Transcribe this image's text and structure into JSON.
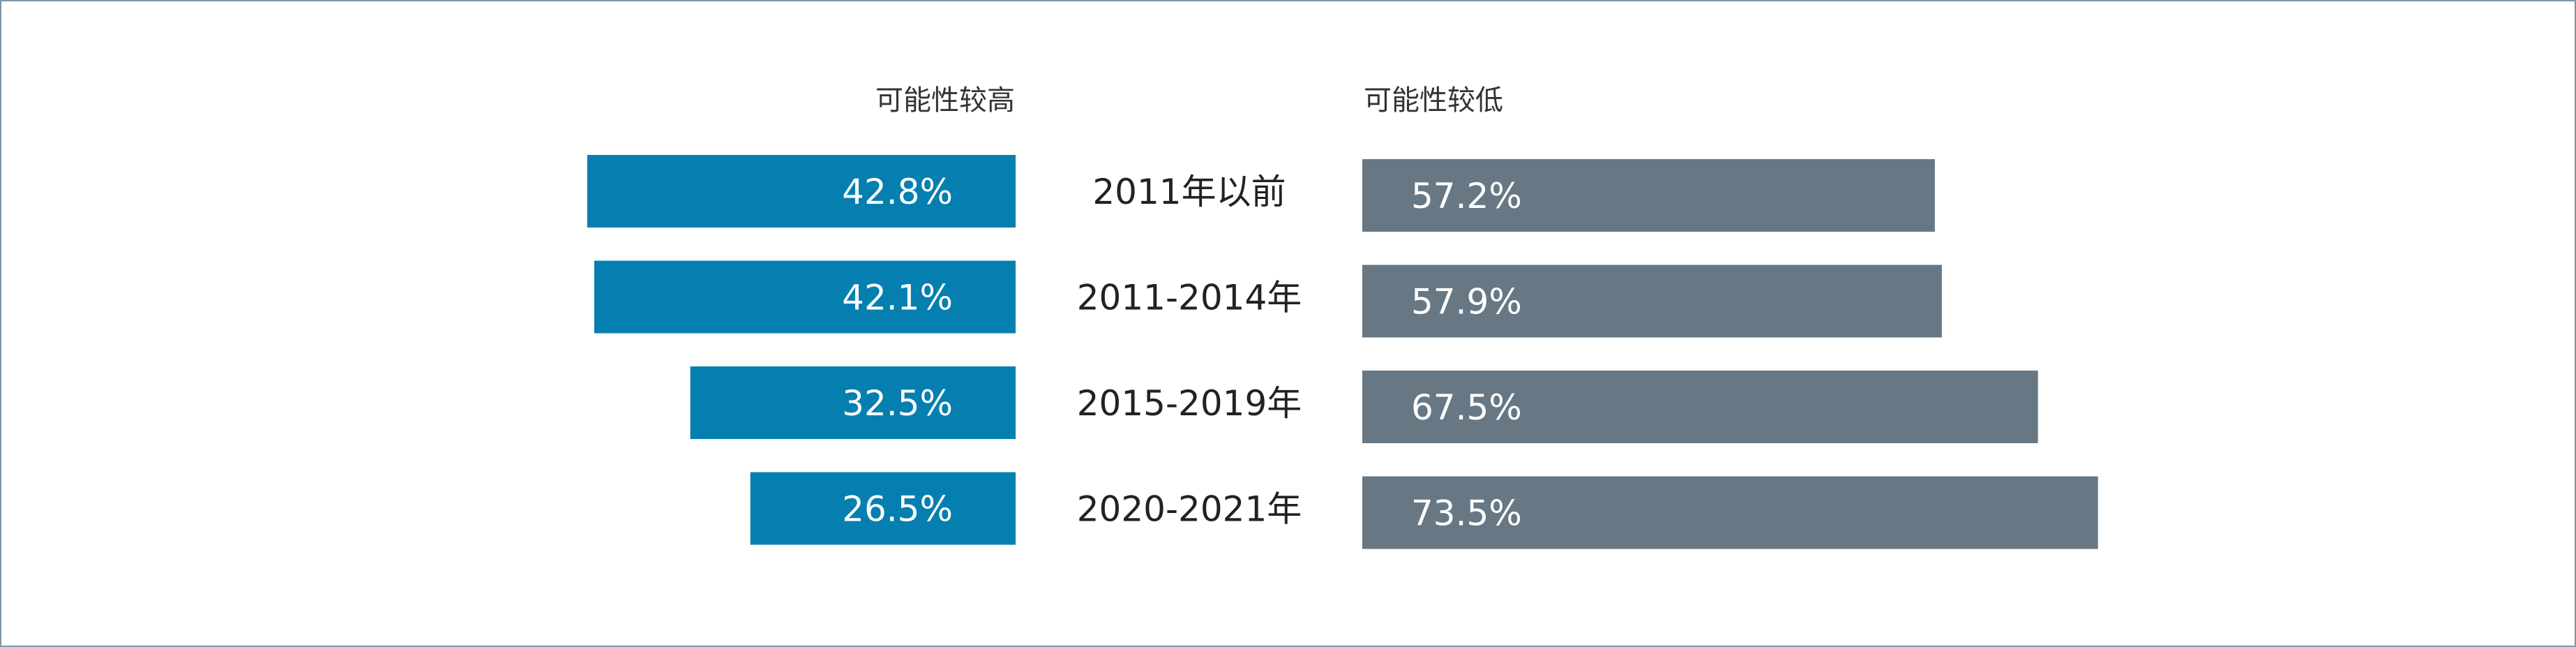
{
  "chart_data": {
    "type": "bar",
    "categories": [
      "2011年以前",
      "2011-2014年",
      "2015-2019年",
      "2020-2021年"
    ],
    "series": [
      {
        "name": "可能性较高",
        "values": [
          42.8,
          42.1,
          32.5,
          26.5
        ],
        "labels": [
          "42.8%",
          "42.1%",
          "32.5%",
          "26.5%"
        ],
        "color": "#047fb0"
      },
      {
        "name": "可能性较低",
        "values": [
          57.2,
          57.9,
          67.5,
          73.5
        ],
        "labels": [
          "57.2%",
          "57.9%",
          "67.5%",
          "73.5%"
        ],
        "color": "#677884"
      }
    ],
    "unit": "%",
    "xlim": [
      0,
      100
    ],
    "grid": false,
    "orientation": "horizontal-butterfly"
  }
}
